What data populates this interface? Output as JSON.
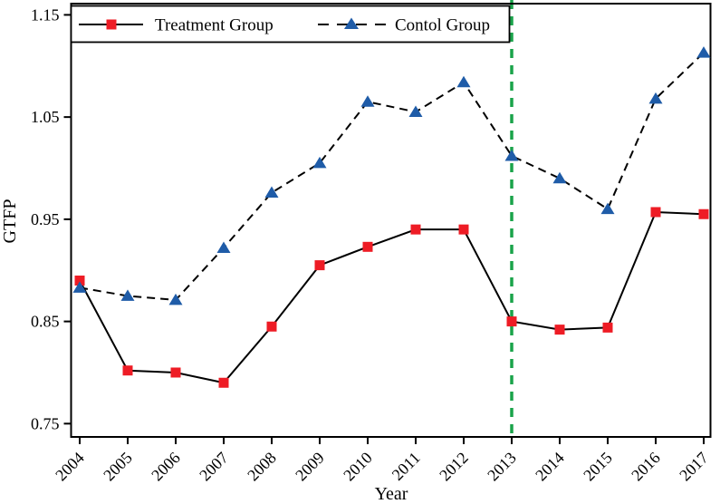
{
  "chart_data": {
    "type": "line",
    "title": "",
    "xlabel": "Year",
    "ylabel": "GTFP",
    "x": [
      2004,
      2005,
      2006,
      2007,
      2008,
      2009,
      2010,
      2011,
      2012,
      2013,
      2014,
      2015,
      2016,
      2017
    ],
    "series": [
      {
        "name": "Treatment Group",
        "marker": "square",
        "marker_color": "#EE1C25",
        "line_color": "#000000",
        "line_style": "solid",
        "values": [
          0.89,
          0.802,
          0.8,
          0.79,
          0.845,
          0.905,
          0.923,
          0.94,
          0.94,
          0.85,
          0.842,
          0.844,
          0.957,
          0.955
        ]
      },
      {
        "name": "Contol Group",
        "marker": "triangle",
        "marker_color": "#1F5CA8",
        "line_color": "#000000",
        "line_style": "dashed",
        "values": [
          0.883,
          0.875,
          0.871,
          0.922,
          0.976,
          1.005,
          1.065,
          1.055,
          1.084,
          1.012,
          0.99,
          0.96,
          1.068,
          1.113
        ]
      }
    ],
    "yticks": [
      "0.75",
      "0.85",
      "0.95",
      "1.05",
      "1.15"
    ],
    "ylim": [
      0.737,
      1.161
    ],
    "vline": {
      "x": 2013,
      "color": "#1AA34A",
      "style": "dashed"
    },
    "legend_position": "top-left-inside",
    "grid": false,
    "axis_color": "#000000",
    "background": "#FFFFFF"
  }
}
